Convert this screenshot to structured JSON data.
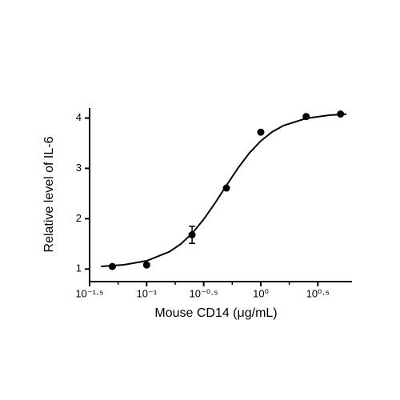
{
  "chart_data": {
    "type": "scatter",
    "x_label": "Mouse CD14 (μg/mL)",
    "y_label": "Relative level of IL-6",
    "xscale": "log",
    "xlim": [
      0.03162,
      6.3
    ],
    "ylim": [
      0.75,
      4.2
    ],
    "xticks": [
      {
        "value": 0.03162,
        "label": "10⁻¹·⁵"
      },
      {
        "value": 0.1,
        "label": "10⁻¹"
      },
      {
        "value": 0.3162,
        "label": "10⁻⁰·⁵"
      },
      {
        "value": 1,
        "label": "10⁰"
      },
      {
        "value": 3.162,
        "label": "10⁰·⁵"
      }
    ],
    "yticks": [
      1,
      2,
      3,
      4
    ],
    "color": "#000000",
    "series": [
      {
        "x": [
          0.05,
          0.1,
          0.25,
          0.5,
          1,
          2.5,
          5
        ],
        "values": [
          1.05,
          1.08,
          1.68,
          2.61,
          3.72,
          4.03,
          4.08
        ],
        "errors": [
          null,
          null,
          0.17,
          null,
          null,
          null,
          null
        ]
      }
    ],
    "fit": {
      "x": [
        0.0398,
        0.0631,
        0.1,
        0.158,
        0.2,
        0.251,
        0.316,
        0.398,
        0.501,
        0.631,
        0.794,
        1,
        1.259,
        1.585,
        2.512,
        3.981,
        5.623
      ],
      "values": [
        1.052,
        1.084,
        1.163,
        1.343,
        1.499,
        1.712,
        1.987,
        2.313,
        2.664,
        3.005,
        3.305,
        3.545,
        3.725,
        3.852,
        3.996,
        4.057,
        4.079
      ]
    }
  }
}
